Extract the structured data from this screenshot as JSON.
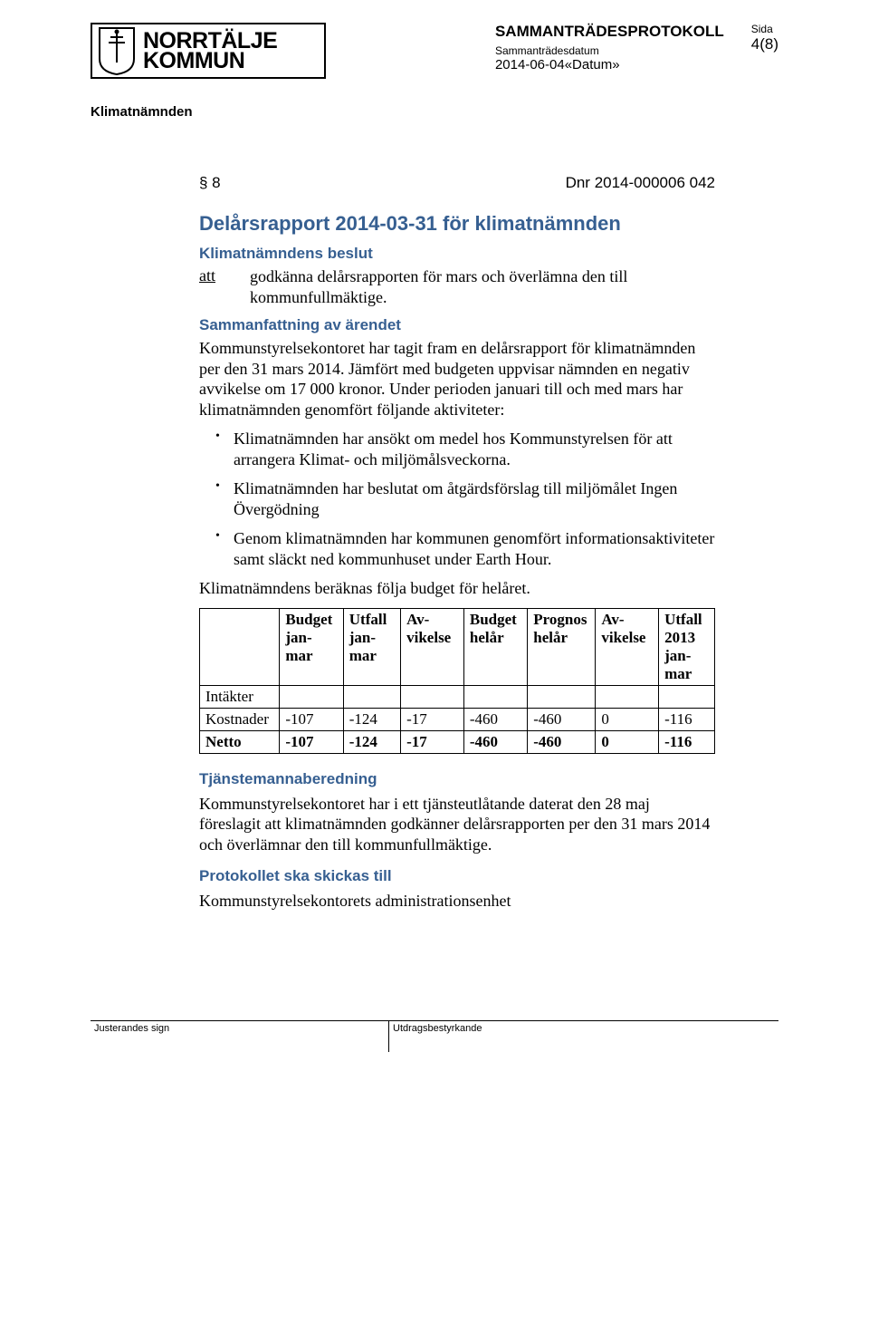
{
  "header": {
    "logo_line1": "NORRTÄLJE",
    "logo_line2": "KOMMUN",
    "protocol_title": "SAMMANTRÄDESPROTOKOLL",
    "date_label": "Sammanträdesdatum",
    "date_value": "2014-06-04«Datum»",
    "sida_label": "Sida",
    "sida_value": "4(8)"
  },
  "committee": "Klimatnämnden",
  "section": {
    "num": "§ 8",
    "dnr": "Dnr 2014-000006 042",
    "title": "Delårsrapport 2014-03-31 för klimatnämnden",
    "beslut_heading": "Klimatnämndens beslut",
    "att_label": "att",
    "att_text": "godkänna delårsrapporten för mars och överlämna den till kommunfullmäktige.",
    "summary_heading": "Sammanfattning av ärendet",
    "summary_para": "Kommunstyrelsekontoret har tagit fram en delårsrapport för klimatnämnden per den 31 mars 2014. Jämfört med budgeten uppvisar nämnden en negativ avvikelse om 17 000 kronor. Under perioden januari till och med mars har klimatnämnden genomfört följande aktiviteter:",
    "bullets": [
      "Klimatnämnden har ansökt om medel hos Kommunstyrelsen för att arrangera Klimat- och miljömålsveckorna.",
      "Klimatnämnden har beslutat om åtgärdsförslag till miljömålet Ingen Övergödning",
      "Genom klimatnämnden har kommunen genomfört informationsaktiviteter samt släckt ned kommunhuset under Earth Hour."
    ],
    "follow_line": "Klimatnämndens beräknas följa budget för helåret."
  },
  "table": {
    "columns": [
      "",
      "Budget jan-mar",
      "Utfall jan-mar",
      "Av-vikelse",
      "Budget helår",
      "Prognos helår",
      "Av-vikelse",
      "Utfall 2013 jan-mar"
    ],
    "rows": [
      [
        "Intäkter",
        "",
        "",
        "",
        "",
        "",
        "",
        ""
      ],
      [
        "Kostnader",
        "-107",
        "-124",
        "-17",
        "-460",
        "-460",
        "0",
        "-116"
      ],
      [
        "Netto",
        "-107",
        "-124",
        "-17",
        "-460",
        "-460",
        "0",
        "-116"
      ]
    ],
    "col_widths": [
      "90px",
      "72px",
      "66px",
      "72px",
      "72px",
      "76px",
      "72px",
      "64px"
    ]
  },
  "beredning": {
    "heading": "Tjänstemannaberedning",
    "text": "Kommunstyrelsekontoret har i ett tjänsteutlåtande daterat den 28 maj föreslagit att klimatnämnden godkänner delårsrapporten per den 31 mars 2014 och överlämnar den till kommunfullmäktige."
  },
  "skickas": {
    "heading": "Protokollet ska skickas till",
    "text": "Kommunstyrelsekontorets administrationsenhet"
  },
  "footer": {
    "left": "Justerandes sign",
    "right": "Utdragsbestyrkande"
  },
  "colors": {
    "heading_blue": "#365f91",
    "text": "#000000",
    "background": "#ffffff"
  }
}
